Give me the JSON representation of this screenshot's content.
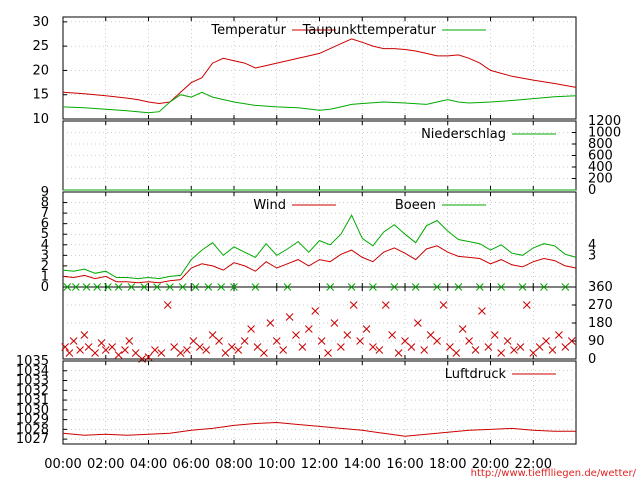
{
  "chart_data": {
    "type": "line",
    "x_tick_labels": [
      "00:00",
      "02:00",
      "04:00",
      "06:00",
      "08:00",
      "10:00",
      "12:00",
      "14:00",
      "16:00",
      "18:00",
      "20:00",
      "22:00"
    ],
    "source_url": "http://www.tiefflliegen.de/wetter/",
    "panels": [
      {
        "id": "temperature",
        "ylim": [
          10,
          31
        ],
        "y_ticks": [
          10,
          15,
          20,
          25,
          30
        ],
        "y_tick_labels": [
          "10",
          "15",
          "20",
          "25",
          "30"
        ],
        "series": [
          {
            "name": "Temperatur",
            "color": "#cc0000",
            "hours": [
              0,
              1,
              2,
              3,
              3.5,
              4,
              4.5,
              5,
              5.5,
              6,
              6.5,
              7,
              7.5,
              8,
              8.5,
              9,
              9.5,
              10,
              10.5,
              11,
              11.5,
              12,
              12.5,
              13,
              13.5,
              14,
              14.5,
              15,
              15.5,
              16,
              16.5,
              17,
              17.5,
              18,
              18.5,
              19,
              19.5,
              20,
              21,
              22,
              23,
              24
            ],
            "values": [
              15.5,
              15.2,
              14.8,
              14.3,
              14,
              13.5,
              13.2,
              13.5,
              15.5,
              17.5,
              18.5,
              21.5,
              22.5,
              22,
              21.5,
              20.5,
              21,
              21.5,
              22,
              22.5,
              23,
              23.5,
              24.5,
              25.5,
              26.5,
              25.8,
              25,
              24.5,
              24.5,
              24.3,
              24,
              23.5,
              23,
              23,
              23.2,
              22.5,
              21.5,
              20,
              18.8,
              18,
              17.3,
              16.5
            ]
          },
          {
            "name": "Taupunkttemperatur",
            "color": "#00aa00",
            "hours": [
              0,
              1,
              2,
              3,
              4,
              4.5,
              5,
              5.5,
              6,
              6.5,
              7,
              8,
              9,
              10,
              11,
              12,
              12.5,
              13,
              13.5,
              14,
              15,
              16,
              17,
              17.5,
              18,
              18.5,
              19,
              20,
              21,
              22,
              23,
              24
            ],
            "values": [
              12.5,
              12.3,
              12,
              11.7,
              11.3,
              11.5,
              13.5,
              15,
              14.5,
              15.5,
              14.5,
              13.5,
              12.8,
              12.5,
              12.3,
              11.8,
              12,
              12.5,
              13,
              13.2,
              13.5,
              13.3,
              13,
              13.5,
              14,
              13.5,
              13.3,
              13.5,
              13.8,
              14.2,
              14.6,
              14.8
            ]
          }
        ]
      },
      {
        "id": "precipitation",
        "ylim": [
          0,
          1200
        ],
        "y_ticks": [
          0,
          200,
          400,
          600,
          800,
          1000,
          1200
        ],
        "y_tick_labels": [
          "0",
          "200",
          "400",
          "600",
          "800",
          "1000",
          "1200"
        ],
        "series": [
          {
            "name": "Niederschlag",
            "color": "#00aa00",
            "hours": [
              0,
              24
            ],
            "values": [
              0,
              0
            ]
          }
        ]
      },
      {
        "id": "wind",
        "ylim": [
          0,
          9
        ],
        "y_ticks": [
          0,
          1,
          2,
          3,
          4,
          5,
          6,
          7,
          8,
          9
        ],
        "y_tick_labels": [
          "0",
          "1",
          "2",
          "3",
          "4",
          "5",
          "6",
          "7",
          "8",
          "9"
        ],
        "right_ticks": [
          3,
          4
        ],
        "right_tick_labels": [
          "3",
          "4"
        ],
        "series": [
          {
            "name": "Wind",
            "color": "#cc0000",
            "hours": [
              0,
              0.5,
              1,
              1.5,
              2,
              2.5,
              3,
              3.5,
              4,
              4.5,
              5,
              5.5,
              6,
              6.5,
              7,
              7.5,
              8,
              8.5,
              9,
              9.5,
              10,
              10.5,
              11,
              11.5,
              12,
              12.5,
              13,
              13.5,
              14,
              14.5,
              15,
              15.5,
              16,
              16.5,
              17,
              17.5,
              18,
              18.5,
              19,
              19.5,
              20,
              20.5,
              21,
              21.5,
              22,
              22.5,
              23,
              23.5,
              24
            ],
            "values": [
              1.0,
              0.9,
              1.1,
              0.8,
              1.0,
              0.5,
              0.5,
              0.4,
              0.5,
              0.4,
              0.6,
              0.7,
              1.8,
              2.2,
              2.0,
              1.6,
              2.3,
              2.0,
              1.5,
              2.4,
              1.8,
              2.2,
              2.6,
              2.0,
              2.6,
              2.4,
              3.1,
              3.5,
              2.8,
              2.4,
              3.3,
              3.7,
              3.2,
              2.6,
              3.6,
              3.9,
              3.3,
              2.9,
              2.8,
              2.7,
              2.2,
              2.6,
              2.1,
              1.9,
              2.4,
              2.7,
              2.5,
              2.0,
              1.8
            ]
          },
          {
            "name": "Boeen",
            "color": "#00aa00",
            "hours": [
              0,
              0.5,
              1,
              1.5,
              2,
              2.5,
              3,
              3.5,
              4,
              4.5,
              5,
              5.5,
              6,
              6.5,
              7,
              7.5,
              8,
              8.5,
              9,
              9.5,
              10,
              10.5,
              11,
              11.5,
              12,
              12.5,
              13,
              13.5,
              14,
              14.5,
              15,
              15.5,
              16,
              16.5,
              17,
              17.5,
              18,
              18.5,
              19,
              19.5,
              20,
              20.5,
              21,
              21.5,
              22,
              22.5,
              23,
              23.5,
              24
            ],
            "values": [
              1.6,
              1.5,
              1.7,
              1.3,
              1.5,
              0.9,
              0.9,
              0.8,
              0.9,
              0.8,
              1.0,
              1.1,
              2.6,
              3.5,
              4.2,
              3.0,
              3.8,
              3.3,
              2.8,
              4.1,
              3.0,
              3.6,
              4.3,
              3.3,
              4.4,
              4.0,
              5.0,
              6.8,
              4.6,
              3.9,
              5.2,
              5.9,
              5.0,
              4.2,
              5.8,
              6.3,
              5.3,
              4.5,
              4.3,
              4.1,
              3.5,
              4.0,
              3.2,
              3.0,
              3.7,
              4.1,
              3.9,
              3.1,
              2.8
            ]
          }
        ]
      },
      {
        "id": "wind_direction",
        "ylim": [
          0,
          360
        ],
        "y_ticks": [
          0,
          90,
          180,
          270,
          360
        ],
        "y_tick_labels": [
          "0",
          "90",
          "180",
          "270",
          "360"
        ],
        "series": [
          {
            "name": "",
            "color": "#cc0000",
            "hours": [
              0.1,
              0.3,
              0.5,
              0.8,
              1.0,
              1.2,
              1.5,
              1.8,
              2.0,
              2.3,
              2.6,
              2.9,
              3.1,
              3.4,
              3.7,
              4.0,
              4.3,
              4.6,
              4.9,
              5.2,
              5.5,
              5.8,
              6.1,
              6.4,
              6.7,
              7.0,
              7.3,
              7.6,
              7.9,
              8.2,
              8.5,
              8.8,
              9.1,
              9.4,
              9.7,
              10.0,
              10.3,
              10.6,
              10.9,
              11.2,
              11.5,
              11.8,
              12.1,
              12.4,
              12.7,
              13.0,
              13.3,
              13.6,
              13.9,
              14.2,
              14.5,
              14.8,
              15.1,
              15.4,
              15.7,
              16.0,
              16.3,
              16.6,
              16.9,
              17.2,
              17.5,
              17.8,
              18.1,
              18.4,
              18.7,
              19.0,
              19.3,
              19.6,
              19.9,
              20.2,
              20.5,
              20.8,
              21.1,
              21.4,
              21.7,
              22.0,
              22.3,
              22.6,
              22.9,
              23.2,
              23.5,
              23.8
            ],
            "values": [
              60,
              30,
              90,
              45,
              120,
              60,
              30,
              80,
              45,
              60,
              20,
              45,
              90,
              30,
              0,
              10,
              45,
              30,
              270,
              60,
              30,
              45,
              90,
              60,
              45,
              120,
              90,
              30,
              60,
              45,
              90,
              150,
              60,
              30,
              180,
              90,
              45,
              210,
              120,
              60,
              150,
              240,
              90,
              30,
              180,
              60,
              120,
              270,
              90,
              150,
              60,
              45,
              270,
              120,
              30,
              90,
              60,
              180,
              45,
              120,
              90,
              270,
              60,
              30,
              150,
              90,
              45,
              240,
              60,
              120,
              30,
              90,
              45,
              60,
              270,
              30,
              60,
              90,
              45,
              120,
              60,
              90
            ]
          },
          {
            "name": "",
            "color": "#00aa00",
            "hours": [
              0.2,
              0.6,
              1.1,
              1.6,
              2.1,
              2.6,
              3.2,
              3.8,
              4.4,
              5.0,
              5.6,
              6.2,
              6.8,
              7.4,
              8.0,
              9.0,
              10.5,
              12.5,
              13.5,
              14.5,
              15.5,
              16.5,
              17.5,
              18.5,
              19.5,
              20.5,
              21.5,
              22.5,
              23.5
            ],
            "values": [
              360,
              360,
              360,
              360,
              360,
              360,
              360,
              360,
              360,
              360,
              360,
              360,
              360,
              360,
              360,
              360,
              360,
              360,
              360,
              360,
              360,
              360,
              360,
              360,
              360,
              360,
              360,
              360,
              360
            ]
          }
        ]
      },
      {
        "id": "pressure",
        "ylim": [
          1026.5,
          1035
        ],
        "y_ticks": [
          1027,
          1028,
          1029,
          1030,
          1031,
          1032,
          1033,
          1034,
          1035
        ],
        "y_tick_labels": [
          "1027",
          "1028",
          "1029",
          "1030",
          "1031",
          "1032",
          "1033",
          "1034",
          "1035"
        ],
        "series": [
          {
            "name": "Luftdruck",
            "color": "#cc0000",
            "hours": [
              0,
              1,
              2,
              3,
              4,
              5,
              6,
              7,
              8,
              9,
              10,
              11,
              12,
              13,
              14,
              15,
              16,
              17,
              18,
              19,
              20,
              21,
              22,
              23,
              24
            ],
            "values": [
              1027.6,
              1027.4,
              1027.5,
              1027.4,
              1027.5,
              1027.6,
              1027.9,
              1028.1,
              1028.4,
              1028.6,
              1028.7,
              1028.5,
              1028.3,
              1028.1,
              1027.9,
              1027.6,
              1027.3,
              1027.5,
              1027.7,
              1027.9,
              1028.0,
              1028.1,
              1027.9,
              1027.8,
              1027.8
            ]
          }
        ]
      }
    ]
  }
}
